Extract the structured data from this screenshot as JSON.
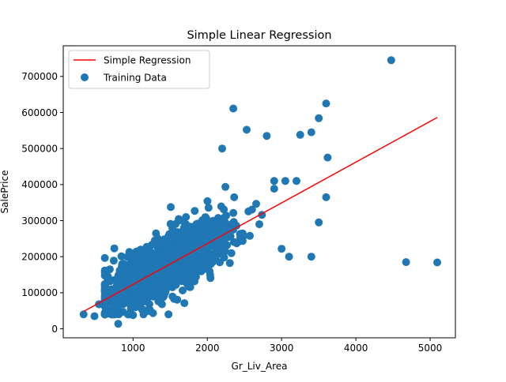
{
  "chart_data": {
    "type": "scatter",
    "title": "Simple Linear Regression",
    "xlabel": "Gr_Liv_Area",
    "ylabel": "SalePrice",
    "xlim": [
      60,
      5340
    ],
    "ylim": [
      -25000,
      785000
    ],
    "x_ticks": [
      1000,
      2000,
      3000,
      4000,
      5000
    ],
    "y_ticks": [
      0,
      100000,
      200000,
      300000,
      400000,
      500000,
      600000,
      700000
    ],
    "grid": false,
    "legend_position": "top-left",
    "series": [
      {
        "name": "Simple Regression",
        "kind": "line",
        "color": "#ff0000",
        "x": [
          334,
          5095
        ],
        "y": [
          48000,
          586000
        ]
      },
      {
        "name": "Training Data",
        "kind": "scatter",
        "color": "#1f77b4",
        "marker": "circle",
        "outliers": {
          "x": [
            334,
            480,
            540,
            800,
            1000,
            2350,
            2530,
            2800,
            3250,
            3400,
            3500,
            3600,
            3620,
            4476,
            4676,
            5095,
            3100,
            3000,
            2900,
            3050,
            3200,
            3500,
            3600,
            3400,
            2200,
            2700
          ],
          "y": [
            40000,
            35000,
            68000,
            14000,
            38000,
            611000,
            552000,
            535000,
            538000,
            545000,
            584000,
            625000,
            475000,
            745000,
            185000,
            184000,
            200000,
            222000,
            410000,
            410000,
            410000,
            295000,
            365000,
            200000,
            500000,
            290000
          ]
        },
        "cluster": {
          "n": 1350,
          "x_mean": 1450,
          "x_sd": 420,
          "x_range": [
            620,
            2900
          ],
          "slope": 113,
          "intercept": 10000,
          "y_sd": 42000,
          "y_range": [
            40000,
            470000
          ]
        }
      }
    ]
  }
}
